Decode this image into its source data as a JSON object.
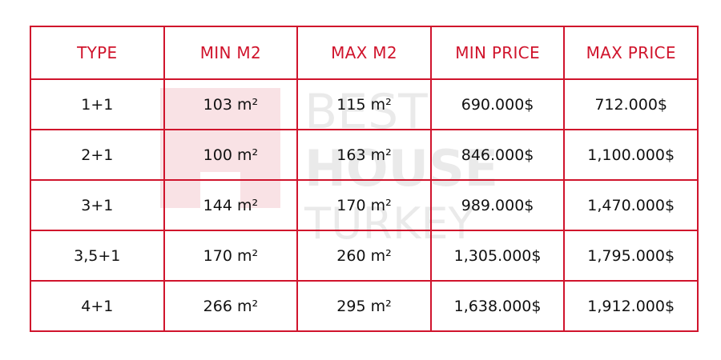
{
  "watermark": {
    "lines": [
      "BEST",
      "HOUSE",
      "TURKEY"
    ]
  },
  "table": {
    "headers": [
      "TYPE",
      "MIN M2",
      "MAX M2",
      "MIN PRICE",
      "MAX PRICE"
    ],
    "rows": [
      [
        "1+1",
        "103 m²",
        "115 m²",
        "690.000$",
        "712.000$"
      ],
      [
        "2+1",
        "100 m²",
        "163 m²",
        "846.000$",
        "1,100.000$"
      ],
      [
        "3+1",
        "144 m²",
        "170 m²",
        "989.000$",
        "1,470.000$"
      ],
      [
        "3,5+1",
        "170 m²",
        "260 m²",
        "1,305.000$",
        "1,795.000$"
      ],
      [
        "4+1",
        "266 m²",
        "295 m²",
        "1,638.000$",
        "1,912.000$"
      ]
    ]
  }
}
